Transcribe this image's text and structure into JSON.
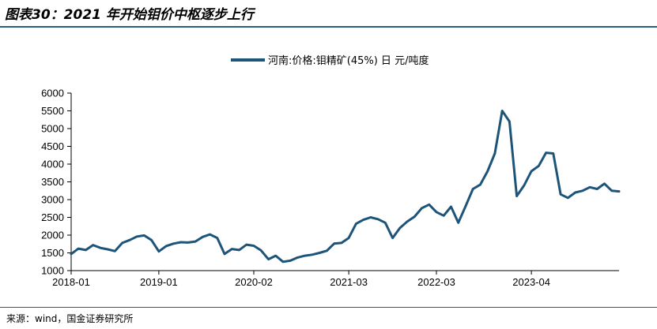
{
  "figure": {
    "title": "图表30：2021 年开始钼价中枢逐步上行",
    "source": "来源：wind，国金证券研究所"
  },
  "chart_data": {
    "type": "line",
    "title": "",
    "xlabel": "",
    "ylabel": "",
    "ylim": [
      1000,
      6000
    ],
    "yticks": [
      1000,
      1500,
      2000,
      2500,
      3000,
      3500,
      4000,
      4500,
      5000,
      5500,
      6000
    ],
    "xtick_labels": [
      "2018-01",
      "2019-01",
      "2020-02",
      "2021-03",
      "2022-03",
      "2023-04"
    ],
    "xtick_dates": [
      "2018-01",
      "2019-01",
      "2020-02",
      "2021-03",
      "2022-03",
      "2023-04"
    ],
    "grid": false,
    "legend_position": "top-center",
    "color": "#1d5479",
    "series": [
      {
        "name": "河南:价格:钼精矿(45%) 日 元/吨度",
        "x": [
          "2018-01",
          "2018-02",
          "2018-03",
          "2018-04",
          "2018-05",
          "2018-06",
          "2018-07",
          "2018-08",
          "2018-09",
          "2018-10",
          "2018-11",
          "2018-12",
          "2019-01",
          "2019-02",
          "2019-03",
          "2019-04",
          "2019-05",
          "2019-06",
          "2019-07",
          "2019-08",
          "2019-09",
          "2019-10",
          "2019-11",
          "2019-12",
          "2020-01",
          "2020-02",
          "2020-03",
          "2020-04",
          "2020-05",
          "2020-06",
          "2020-07",
          "2020-08",
          "2020-09",
          "2020-10",
          "2020-11",
          "2020-12",
          "2021-01",
          "2021-02",
          "2021-03",
          "2021-04",
          "2021-05",
          "2021-06",
          "2021-07",
          "2021-08",
          "2021-09",
          "2021-10",
          "2021-11",
          "2021-12",
          "2022-01",
          "2022-02",
          "2022-03",
          "2022-04",
          "2022-05",
          "2022-06",
          "2022-07",
          "2022-08",
          "2022-09",
          "2022-10",
          "2022-11",
          "2022-12",
          "2023-01",
          "2023-02",
          "2023-03",
          "2023-04",
          "2023-05",
          "2023-06",
          "2023-07",
          "2023-08",
          "2023-09",
          "2023-10",
          "2023-11",
          "2023-12",
          "2024-01",
          "2024-02",
          "2024-03",
          "2024-04"
        ],
        "values": [
          1470,
          1620,
          1580,
          1720,
          1640,
          1600,
          1550,
          1780,
          1860,
          1960,
          1990,
          1860,
          1540,
          1690,
          1760,
          1800,
          1790,
          1820,
          1950,
          2020,
          1920,
          1470,
          1610,
          1580,
          1730,
          1700,
          1570,
          1320,
          1420,
          1250,
          1280,
          1370,
          1420,
          1450,
          1500,
          1560,
          1760,
          1780,
          1920,
          2320,
          2430,
          2500,
          2450,
          2350,
          1920,
          2200,
          2380,
          2520,
          2760,
          2860,
          2650,
          2550,
          2800,
          2350,
          2820,
          3300,
          3420,
          3800,
          4300,
          5500,
          5200,
          3100,
          3400,
          3800,
          3950,
          4320,
          4300,
          3150,
          3050,
          3200,
          3250,
          3350,
          3300,
          3450,
          3250,
          3230
        ]
      }
    ]
  }
}
